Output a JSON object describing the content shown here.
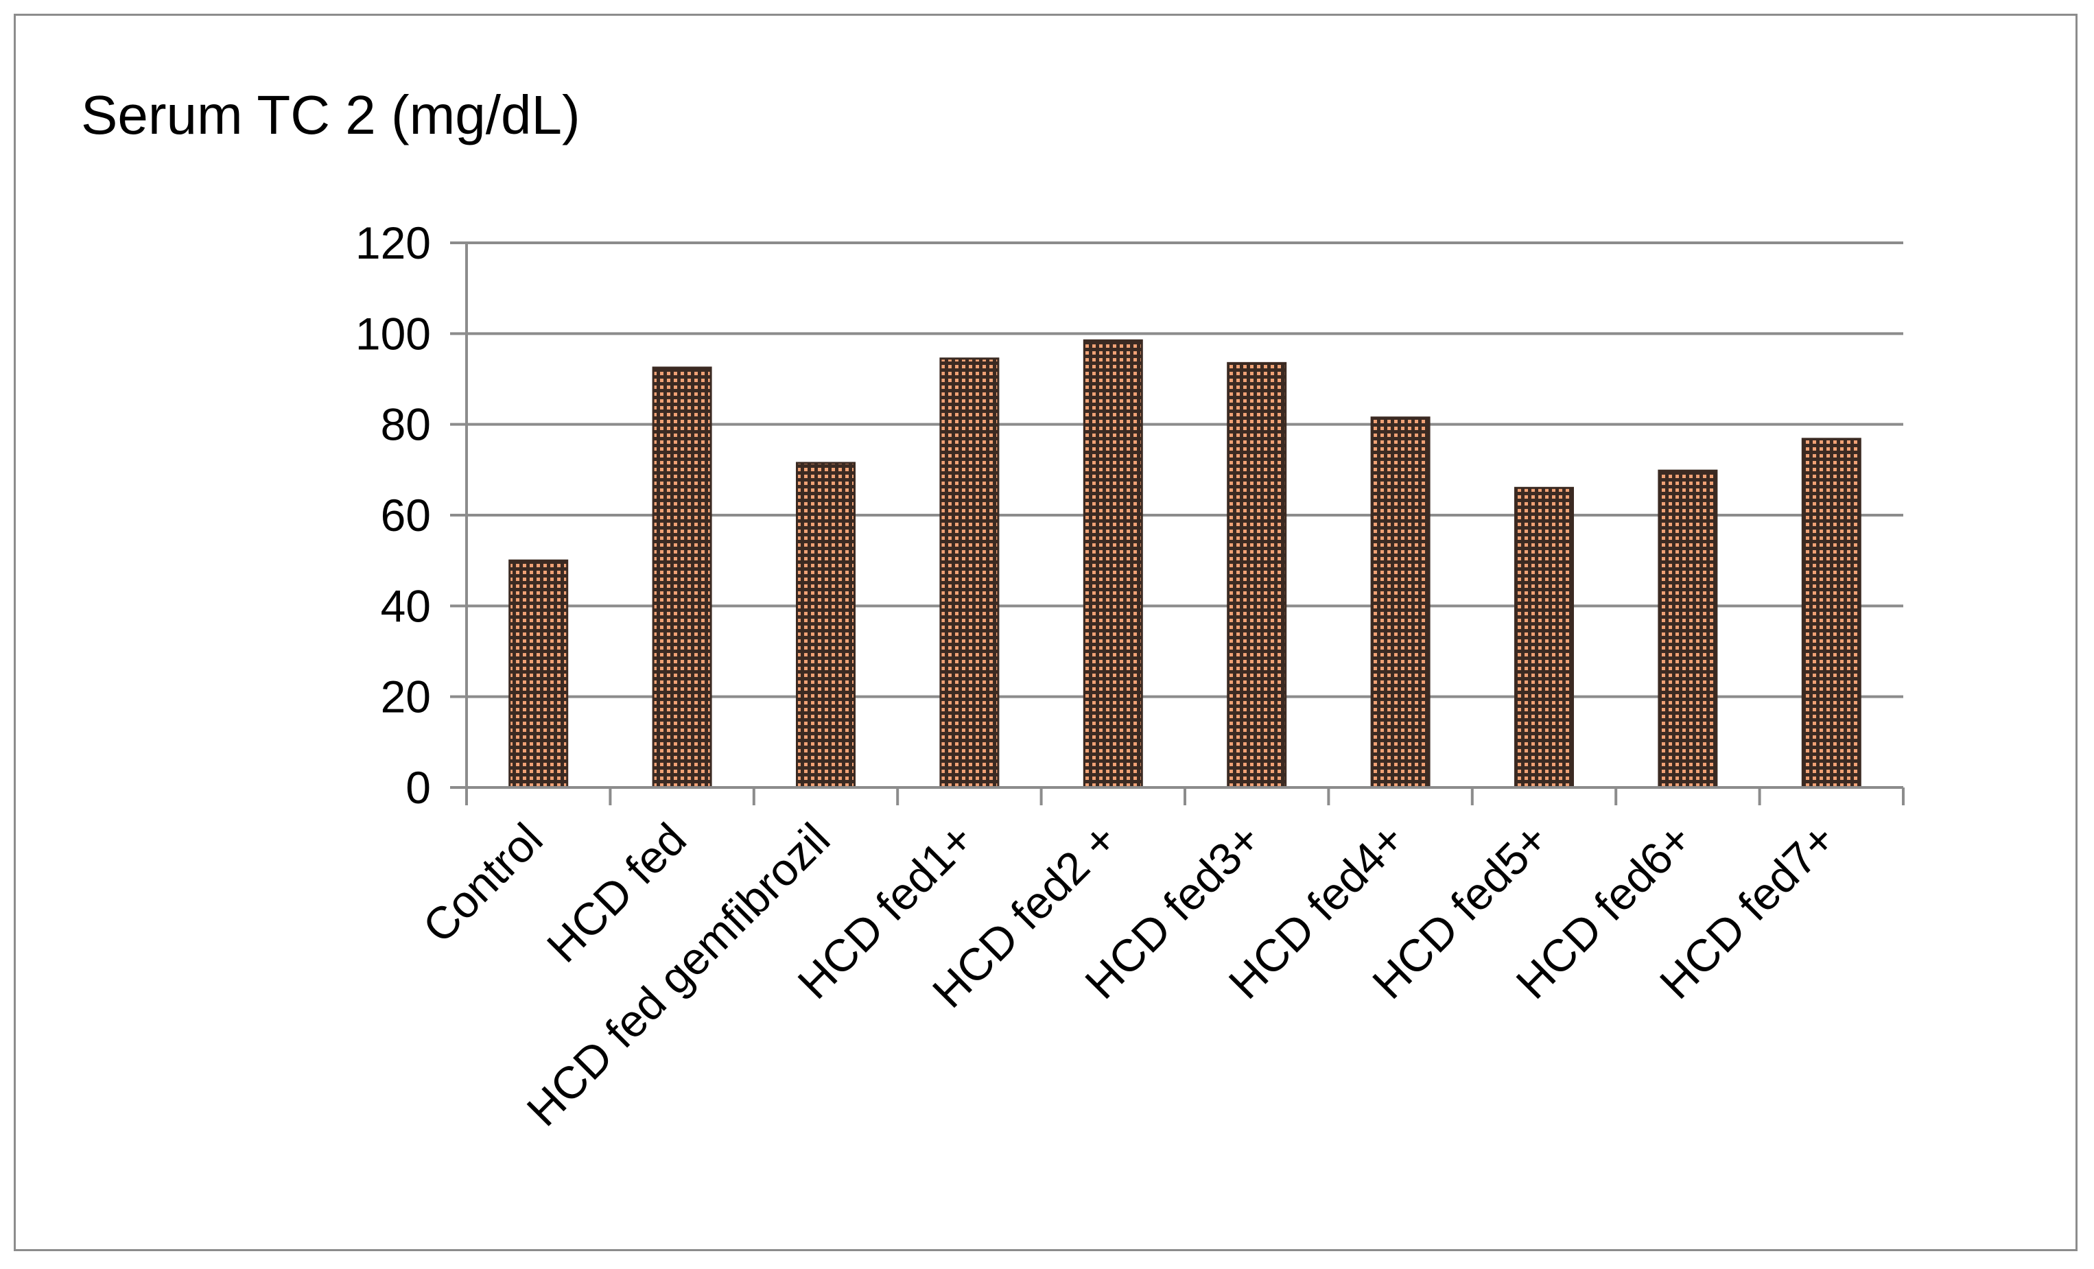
{
  "chart_data": {
    "type": "bar",
    "title": "Serum TC 2 (mg/dL)",
    "xlabel": "",
    "ylabel": "",
    "categories": [
      "Control",
      "HCD fed",
      "HCD fed gemfibrozil",
      "HCD fed1+",
      "HCD fed2 +",
      "HCD fed3+",
      "HCD fed4+",
      "HCD fed5+",
      "HCD fed6+",
      "HCD fed7+"
    ],
    "values": [
      50,
      92.5,
      71.5,
      94.5,
      98.5,
      93.5,
      81.5,
      66,
      69.8,
      76.8
    ],
    "ylim": [
      0,
      120
    ],
    "yticks": [
      "0",
      "20",
      "40",
      "60",
      "80",
      "100",
      "120"
    ],
    "grid": true,
    "legend": "none",
    "colors": {
      "bar_dark": "#3b2a22",
      "bar_dot": "#f0a276",
      "grid": "#8c8c8c",
      "axis": "#8c8c8c"
    }
  }
}
